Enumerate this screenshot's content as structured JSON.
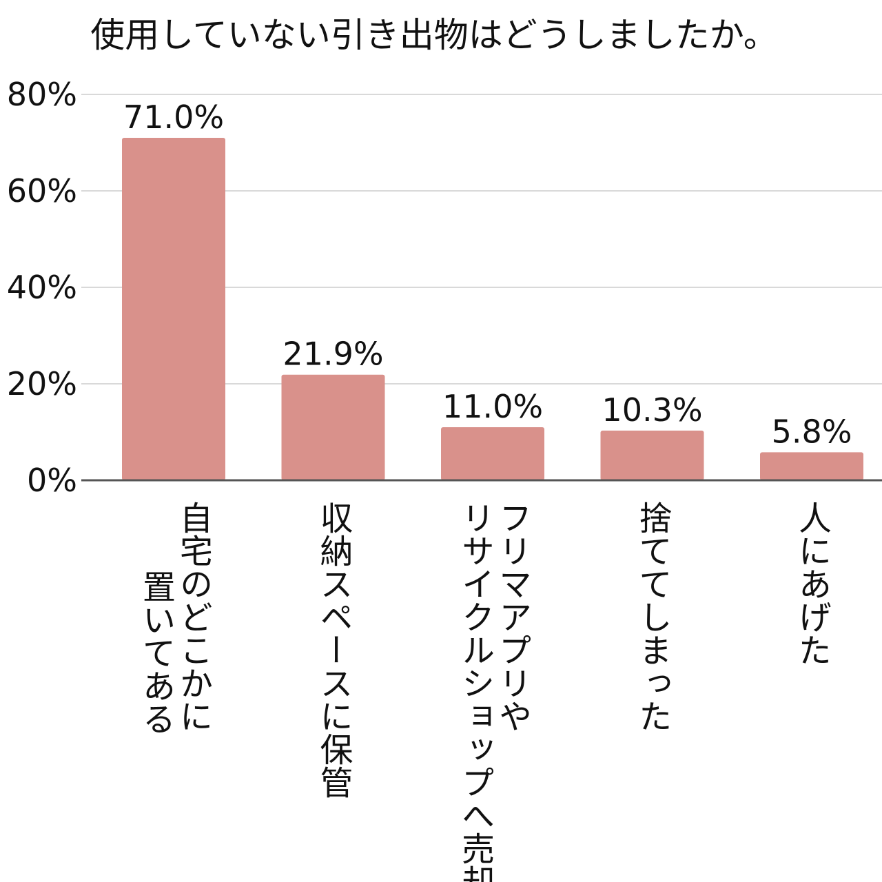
{
  "chart_data": {
    "type": "bar",
    "title": "使用していない引き出物はどうしましたか。",
    "xlabel": "",
    "ylabel": "",
    "ylim": [
      0,
      80
    ],
    "yticks": [
      0,
      20,
      40,
      60,
      80
    ],
    "ytick_labels": [
      "0%",
      "20%",
      "40%",
      "60%",
      "80%"
    ],
    "grid": true,
    "categories": [
      "自宅のどこかに置いてある",
      "収納スペースに保管",
      "フリマアプリやリサイクルショップへ売却",
      "捨ててしまった",
      "人にあげた"
    ],
    "category_lines": [
      [
        "自宅のどこかに",
        "置いてある"
      ],
      [
        "収納スペースに保管"
      ],
      [
        "フリマアプリや",
        "リサイクルショップへ売却"
      ],
      [
        "捨ててしまった"
      ],
      [
        "人にあげた"
      ]
    ],
    "values": [
      71.0,
      21.9,
      11.0,
      10.3,
      5.8
    ],
    "data_labels": [
      "71.0%",
      "21.9%",
      "11.0%",
      "10.3%",
      "5.8%"
    ],
    "bar_color": "#d9918b",
    "grid_color": "#d9d9d9",
    "axis_color": "#555555"
  }
}
